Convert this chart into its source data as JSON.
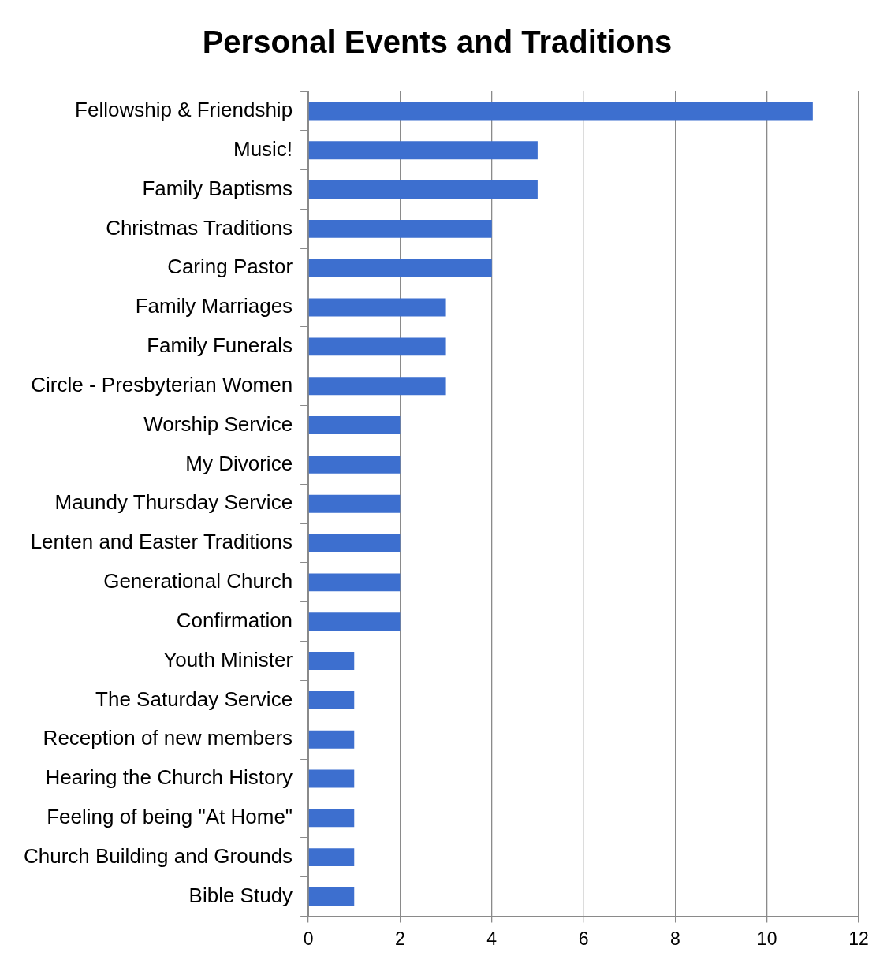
{
  "chart_data": {
    "type": "bar",
    "orientation": "horizontal",
    "title": "Personal Events and Traditions",
    "categories": [
      "Fellowship & Friendship",
      "Music!",
      "Family Baptisms",
      "Christmas Traditions",
      "Caring Pastor",
      "Family Marriages",
      "Family Funerals",
      "Circle - Presbyterian Women",
      "Worship Service",
      "My Divorice",
      "Maundy Thursday Service",
      "Lenten and Easter Traditions",
      "Generational Church",
      "Confirmation",
      "Youth Minister",
      "The Saturday Service",
      "Reception of new members",
      "Hearing the Church History",
      "Feeling of being \"At Home\"",
      "Church Building and Grounds",
      "Bible Study"
    ],
    "values": [
      11,
      5,
      5,
      4,
      4,
      3,
      3,
      3,
      2,
      2,
      2,
      2,
      2,
      2,
      1,
      1,
      1,
      1,
      1,
      1,
      1
    ],
    "color": "#3d6fcf",
    "xlim": [
      0,
      12
    ],
    "xticks": [
      0,
      2,
      4,
      6,
      8,
      10,
      12
    ],
    "grid": "x",
    "legend": false
  }
}
